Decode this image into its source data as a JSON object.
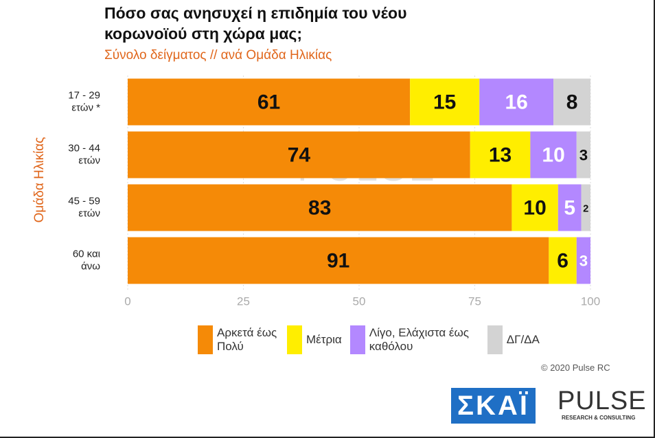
{
  "chart_data": {
    "type": "stacked-bar-horizontal",
    "title": [
      "Πόσο σας ανησυχεί η επιδημία του νέου",
      "κορωνοϊού στη χώρα μας;"
    ],
    "subtitle": "Σύνολο δείγματος // ανά Ομάδα Ηλικίας",
    "y_label": "Ομάδα Ηλικίας",
    "categories": [
      [
        "17 - 29",
        "ετών *"
      ],
      [
        "30 - 44",
        "ετών"
      ],
      [
        "45 - 59",
        "ετών"
      ],
      [
        "60 και",
        "άνω"
      ]
    ],
    "series": [
      {
        "name": "Αρκετά έως Πολύ",
        "color": "#f58a07",
        "label_color": "#111111",
        "values": [
          61,
          74,
          83,
          91
        ]
      },
      {
        "name": "Μέτρια",
        "color": "#ffee00",
        "label_color": "#111111",
        "values": [
          15,
          13,
          10,
          6
        ]
      },
      {
        "name": "Λίγο, Ελάχιστα έως καθόλου",
        "color": "#b388ff",
        "label_color": "#ffffff",
        "values": [
          16,
          10,
          5,
          3
        ]
      },
      {
        "name": "ΔΓ/ΔΑ",
        "color": "#d3d3d3",
        "label_color": "#111111",
        "values": [
          8,
          3,
          2,
          null
        ]
      }
    ],
    "xlim": [
      0,
      100
    ],
    "xticks": [
      0,
      25,
      50,
      75,
      100
    ],
    "grid": true,
    "copyright": "© 2020 Pulse RC",
    "watermark": [
      "PULSE",
      "RESEARCH & CONSULTING"
    ],
    "logos": {
      "skai": "ΣΚΑΪ",
      "pulse": "PULSE",
      "pulse_sub": "RESEARCH & CONSULTING"
    }
  }
}
